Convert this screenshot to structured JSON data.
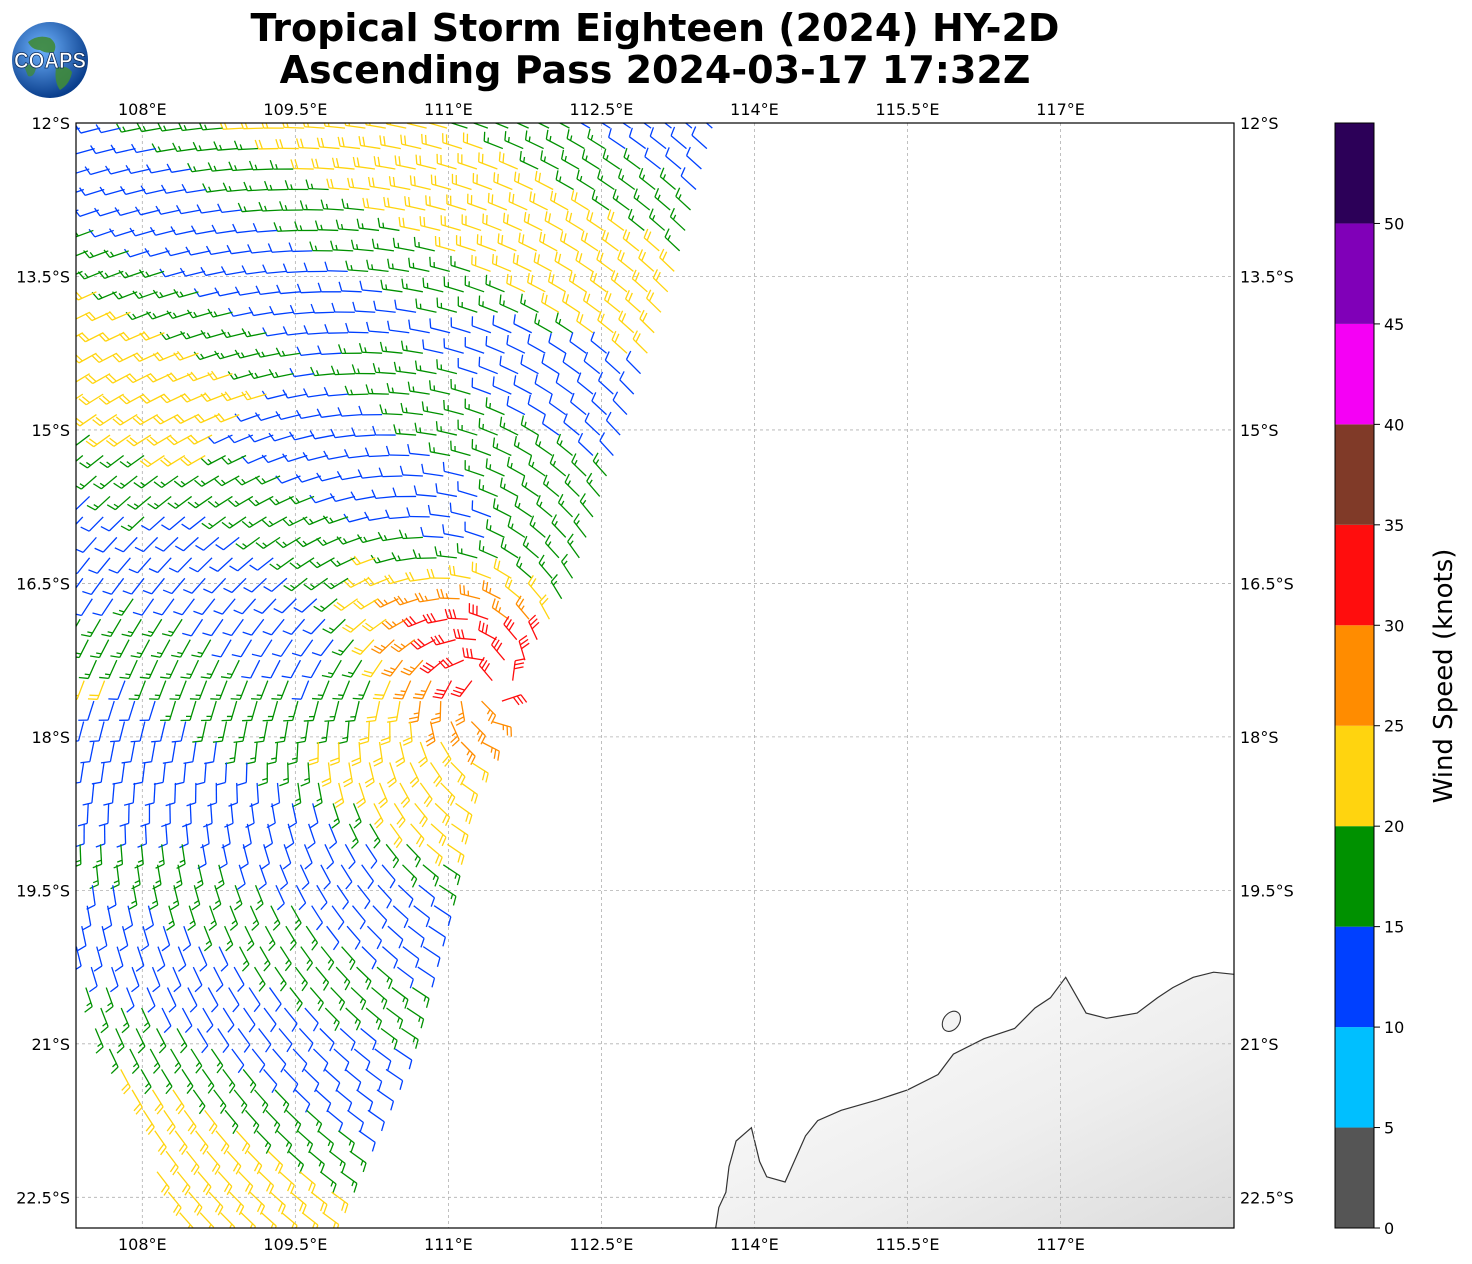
{
  "title": {
    "line1": "Tropical Storm Eighteen (2024) HY-2D",
    "line2": "Ascending Pass 2024-03-17 17:32Z"
  },
  "logo": {
    "text": "COAPS",
    "icon": "globe-logo-icon"
  },
  "map": {
    "lon_range": [
      107.35,
      118.7
    ],
    "lat_range": [
      -22.8,
      -12.0
    ],
    "lon_ticks": [
      {
        "value": 108.0,
        "label": "108°E"
      },
      {
        "value": 109.5,
        "label": "109.5°E"
      },
      {
        "value": 111.0,
        "label": "111°E"
      },
      {
        "value": 112.5,
        "label": "112.5°E"
      },
      {
        "value": 114.0,
        "label": "114°E"
      },
      {
        "value": 115.5,
        "label": "115.5°E"
      },
      {
        "value": 117.0,
        "label": "117°E"
      }
    ],
    "lat_ticks": [
      {
        "value": -12.0,
        "label": "12°S"
      },
      {
        "value": -13.5,
        "label": "13.5°S"
      },
      {
        "value": -15.0,
        "label": "15°S"
      },
      {
        "value": -16.5,
        "label": "16.5°S"
      },
      {
        "value": -18.0,
        "label": "18°S"
      },
      {
        "value": -19.5,
        "label": "19.5°S"
      },
      {
        "value": -21.0,
        "label": "21°S"
      },
      {
        "value": -22.5,
        "label": "22.5°S"
      }
    ],
    "grid": true,
    "storm_center": {
      "lon": 111.4,
      "lat": -17.5
    }
  },
  "colorbar": {
    "label": "Wind Speed (knots)",
    "bins": [
      {
        "min": 0,
        "max": 5,
        "color": "#555555"
      },
      {
        "min": 5,
        "max": 10,
        "color": "#00bfff"
      },
      {
        "min": 10,
        "max": 15,
        "color": "#0040ff"
      },
      {
        "min": 15,
        "max": 20,
        "color": "#009100"
      },
      {
        "min": 20,
        "max": 25,
        "color": "#ffd40f"
      },
      {
        "min": 25,
        "max": 30,
        "color": "#ff8c00"
      },
      {
        "min": 30,
        "max": 35,
        "color": "#ff0d0d"
      },
      {
        "min": 35,
        "max": 40,
        "color": "#803a28"
      },
      {
        "min": 40,
        "max": 45,
        "color": "#f500f5"
      },
      {
        "min": 45,
        "max": 50,
        "color": "#8000b8"
      },
      {
        "min": 50,
        "max": 55,
        "color": "#2c0058"
      }
    ],
    "tick_labels": [
      "0",
      "5",
      "10",
      "15",
      "20",
      "25",
      "30",
      "35",
      "40",
      "45",
      "50"
    ]
  },
  "coastline": [
    [
      113.62,
      -22.8
    ],
    [
      113.65,
      -22.6
    ],
    [
      113.72,
      -22.45
    ],
    [
      113.75,
      -22.2
    ],
    [
      113.82,
      -21.95
    ],
    [
      113.97,
      -21.82
    ],
    [
      114.05,
      -22.15
    ],
    [
      114.12,
      -22.3
    ],
    [
      114.3,
      -22.35
    ],
    [
      114.5,
      -21.9
    ],
    [
      114.62,
      -21.75
    ],
    [
      114.85,
      -21.65
    ],
    [
      115.2,
      -21.55
    ],
    [
      115.5,
      -21.45
    ],
    [
      115.8,
      -21.3
    ],
    [
      115.95,
      -21.1
    ],
    [
      116.25,
      -20.95
    ],
    [
      116.55,
      -20.85
    ],
    [
      116.75,
      -20.65
    ],
    [
      116.9,
      -20.55
    ],
    [
      117.05,
      -20.35
    ],
    [
      117.25,
      -20.7
    ],
    [
      117.45,
      -20.75
    ],
    [
      117.75,
      -20.7
    ],
    [
      117.95,
      -20.55
    ],
    [
      118.1,
      -20.45
    ],
    [
      118.3,
      -20.35
    ],
    [
      118.5,
      -20.3
    ],
    [
      118.7,
      -20.32
    ]
  ]
}
